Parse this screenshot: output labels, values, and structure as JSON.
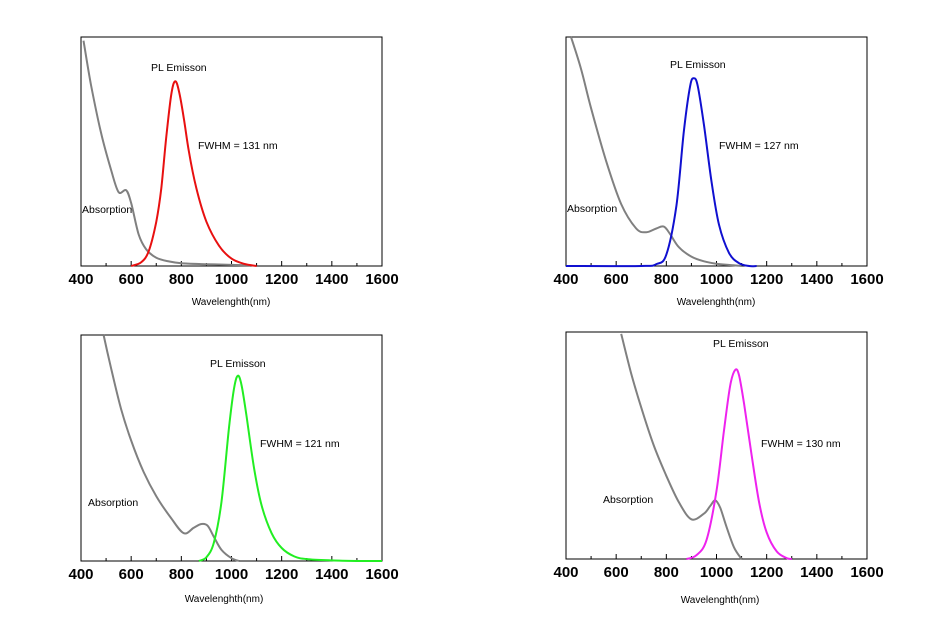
{
  "chart_data": [
    {
      "type": "line",
      "xlabel": "Wavelenghth(nm)",
      "ylabel": "",
      "xlim": [
        400,
        1600
      ],
      "xticks": [
        400,
        600,
        800,
        1000,
        1200,
        1400,
        1600
      ],
      "grid": false,
      "annotations": {
        "emission": "PL Emisson",
        "fwhm": "FWHM = 131 nm",
        "absorption": "Absorption"
      },
      "series": [
        {
          "color": "#808080",
          "x": [
            410,
            440,
            480,
            520,
            550,
            580,
            600,
            630,
            660,
            700,
            750,
            800,
            900,
            1000,
            1075
          ],
          "y": [
            1.22,
            0.98,
            0.72,
            0.52,
            0.4,
            0.41,
            0.34,
            0.17,
            0.09,
            0.045,
            0.025,
            0.015,
            0.01,
            0.006,
            0.004
          ]
        },
        {
          "color": "#e81010",
          "x": [
            600,
            640,
            670,
            700,
            720,
            740,
            760,
            775,
            790,
            810,
            830,
            860,
            900,
            950,
            1000,
            1050,
            1100
          ],
          "y": [
            0.0,
            0.02,
            0.08,
            0.24,
            0.42,
            0.7,
            0.93,
            1.0,
            0.95,
            0.8,
            0.62,
            0.42,
            0.24,
            0.11,
            0.04,
            0.012,
            0.0
          ]
        }
      ]
    },
    {
      "type": "line",
      "xlabel": "Wavelenghth(nm)",
      "ylabel": "",
      "xlim": [
        400,
        1600
      ],
      "xticks": [
        400,
        600,
        800,
        1000,
        1200,
        1400,
        1600
      ],
      "grid": false,
      "annotations": {
        "emission": "PL Emisson",
        "fwhm": "FWHM = 127 nm",
        "absorption": "Absorption"
      },
      "series": [
        {
          "color": "#808080",
          "x": [
            420,
            460,
            500,
            560,
            620,
            680,
            720,
            760,
            790,
            815,
            850,
            900,
            950,
            1000,
            1060,
            1100
          ],
          "y": [
            1.25,
            1.05,
            0.84,
            0.56,
            0.33,
            0.2,
            0.18,
            0.2,
            0.21,
            0.17,
            0.1,
            0.05,
            0.025,
            0.012,
            0.005,
            0.0
          ]
        },
        {
          "color": "#1010d0",
          "x": [
            400,
            700,
            760,
            800,
            840,
            870,
            895,
            910,
            925,
            950,
            980,
            1010,
            1050,
            1090,
            1130,
            1160
          ],
          "y": [
            0.0,
            0.0,
            0.01,
            0.06,
            0.32,
            0.72,
            0.96,
            1.0,
            0.96,
            0.75,
            0.45,
            0.22,
            0.07,
            0.015,
            0.0,
            0.0
          ]
        }
      ]
    },
    {
      "type": "line",
      "xlabel": "Wavelenghth(nm)",
      "ylabel": "",
      "xlim": [
        400,
        1600
      ],
      "xticks": [
        400,
        600,
        800,
        1000,
        1200,
        1400,
        1600
      ],
      "grid": false,
      "annotations": {
        "emission": "PL Emisson",
        "fwhm": "FWHM = 121 nm",
        "absorption": "Absorption"
      },
      "series": [
        {
          "color": "#808080",
          "x": [
            490,
            520,
            560,
            600,
            650,
            700,
            760,
            810,
            850,
            880,
            905,
            930,
            960,
            1000,
            1030
          ],
          "y": [
            1.24,
            1.04,
            0.82,
            0.65,
            0.48,
            0.35,
            0.23,
            0.15,
            0.18,
            0.2,
            0.19,
            0.13,
            0.06,
            0.015,
            0.0
          ]
        },
        {
          "color": "#22ee22",
          "x": [
            870,
            900,
            930,
            960,
            990,
            1010,
            1025,
            1040,
            1060,
            1090,
            1120,
            1160,
            1200,
            1250,
            1300,
            1400,
            1500,
            1600
          ],
          "y": [
            0.0,
            0.02,
            0.1,
            0.32,
            0.72,
            0.93,
            1.0,
            0.95,
            0.78,
            0.5,
            0.3,
            0.15,
            0.07,
            0.025,
            0.01,
            0.003,
            0.0,
            0.0
          ]
        }
      ]
    },
    {
      "type": "line",
      "xlabel": "Wavelenghth(nm)",
      "ylabel": "",
      "xlim": [
        400,
        1600
      ],
      "xticks": [
        400,
        600,
        800,
        1000,
        1200,
        1400,
        1600
      ],
      "grid": false,
      "annotations": {
        "emission": "PL Emisson",
        "fwhm": "FWHM = 130 nm",
        "absorption": "Absorption"
      },
      "series": [
        {
          "color": "#808080",
          "x": [
            620,
            660,
            700,
            750,
            800,
            850,
            900,
            950,
            975,
            995,
            1015,
            1040,
            1070,
            1100
          ],
          "y": [
            1.19,
            0.98,
            0.8,
            0.6,
            0.44,
            0.3,
            0.21,
            0.24,
            0.28,
            0.31,
            0.27,
            0.17,
            0.06,
            0.0
          ]
        },
        {
          "color": "#ee22ee",
          "x": [
            880,
            920,
            960,
            1000,
            1030,
            1055,
            1075,
            1090,
            1110,
            1140,
            1170,
            1200,
            1240,
            1280,
            1300
          ],
          "y": [
            0.0,
            0.02,
            0.1,
            0.36,
            0.68,
            0.92,
            1.0,
            0.97,
            0.82,
            0.55,
            0.3,
            0.14,
            0.04,
            0.005,
            0.0
          ]
        }
      ]
    }
  ]
}
